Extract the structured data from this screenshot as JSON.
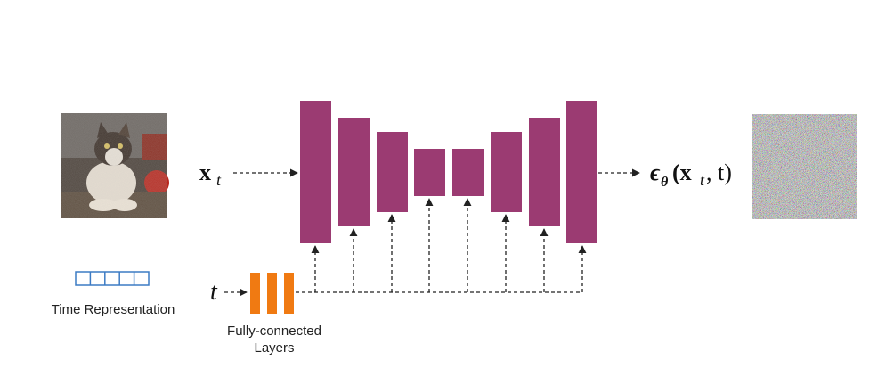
{
  "diagram": {
    "input_label": "x",
    "input_sub": "t",
    "time_label": "t",
    "output_label": "ϵ",
    "output_sub": "θ",
    "output_args": "(x",
    "output_args_sub": "t",
    "output_args_end": ", t)",
    "time_representation_label": "Time Representation",
    "fc_label_line1": "Fully-connected",
    "fc_label_line2": "Layers",
    "colors": {
      "unet_block": "#9b3b72",
      "fc_layer": "#f07a12",
      "time_cell": "#3c7bc4",
      "arrow": "#222222"
    },
    "icons": {
      "input_image": "noisy-cat-photo",
      "output_image": "noise-pattern"
    }
  }
}
